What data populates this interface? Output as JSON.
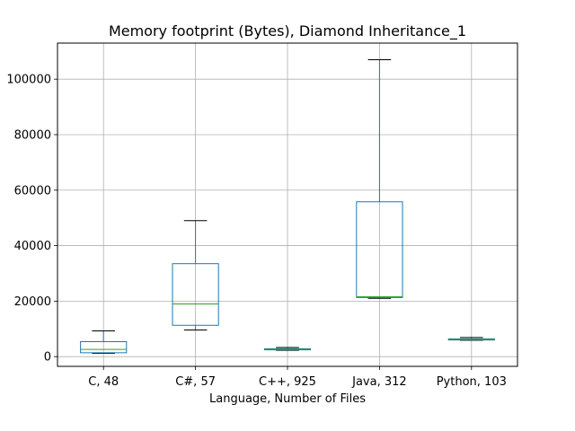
{
  "chart_data": {
    "type": "box",
    "title": "Memory footprint (Bytes), Diamond Inheritance_1",
    "xlabel": "Language, Number of Files",
    "ylabel": "",
    "ylim": [
      -3500,
      113000
    ],
    "yticks": [
      0,
      20000,
      40000,
      60000,
      80000,
      100000
    ],
    "ytick_labels": [
      "0",
      "20000",
      "40000",
      "60000",
      "80000",
      "100000"
    ],
    "grid": true,
    "categories": [
      "C, 48",
      "C#, 57",
      "C++, 925",
      "Java, 312",
      "Python, 103"
    ],
    "boxes": [
      {
        "whisker_low": 1200,
        "q1": 1400,
        "median": 2600,
        "q3": 5400,
        "whisker_high": 9300
      },
      {
        "whisker_low": 9600,
        "q1": 11300,
        "median": 19000,
        "q3": 33500,
        "whisker_high": 49000
      },
      {
        "whisker_low": 2300,
        "q1": 2450,
        "median": 2650,
        "q3": 2850,
        "whisker_high": 3300
      },
      {
        "whisker_low": 21000,
        "q1": 21300,
        "median": 21600,
        "q3": 55800,
        "whisker_high": 107000
      },
      {
        "whisker_low": 5900,
        "q1": 6000,
        "median": 6200,
        "q3": 6400,
        "whisker_high": 6900
      }
    ],
    "colors": {
      "box": "#1f77b4",
      "median": "#2ca02c",
      "whisker_cap": "#000000",
      "grid": "#b0b0b0"
    }
  }
}
